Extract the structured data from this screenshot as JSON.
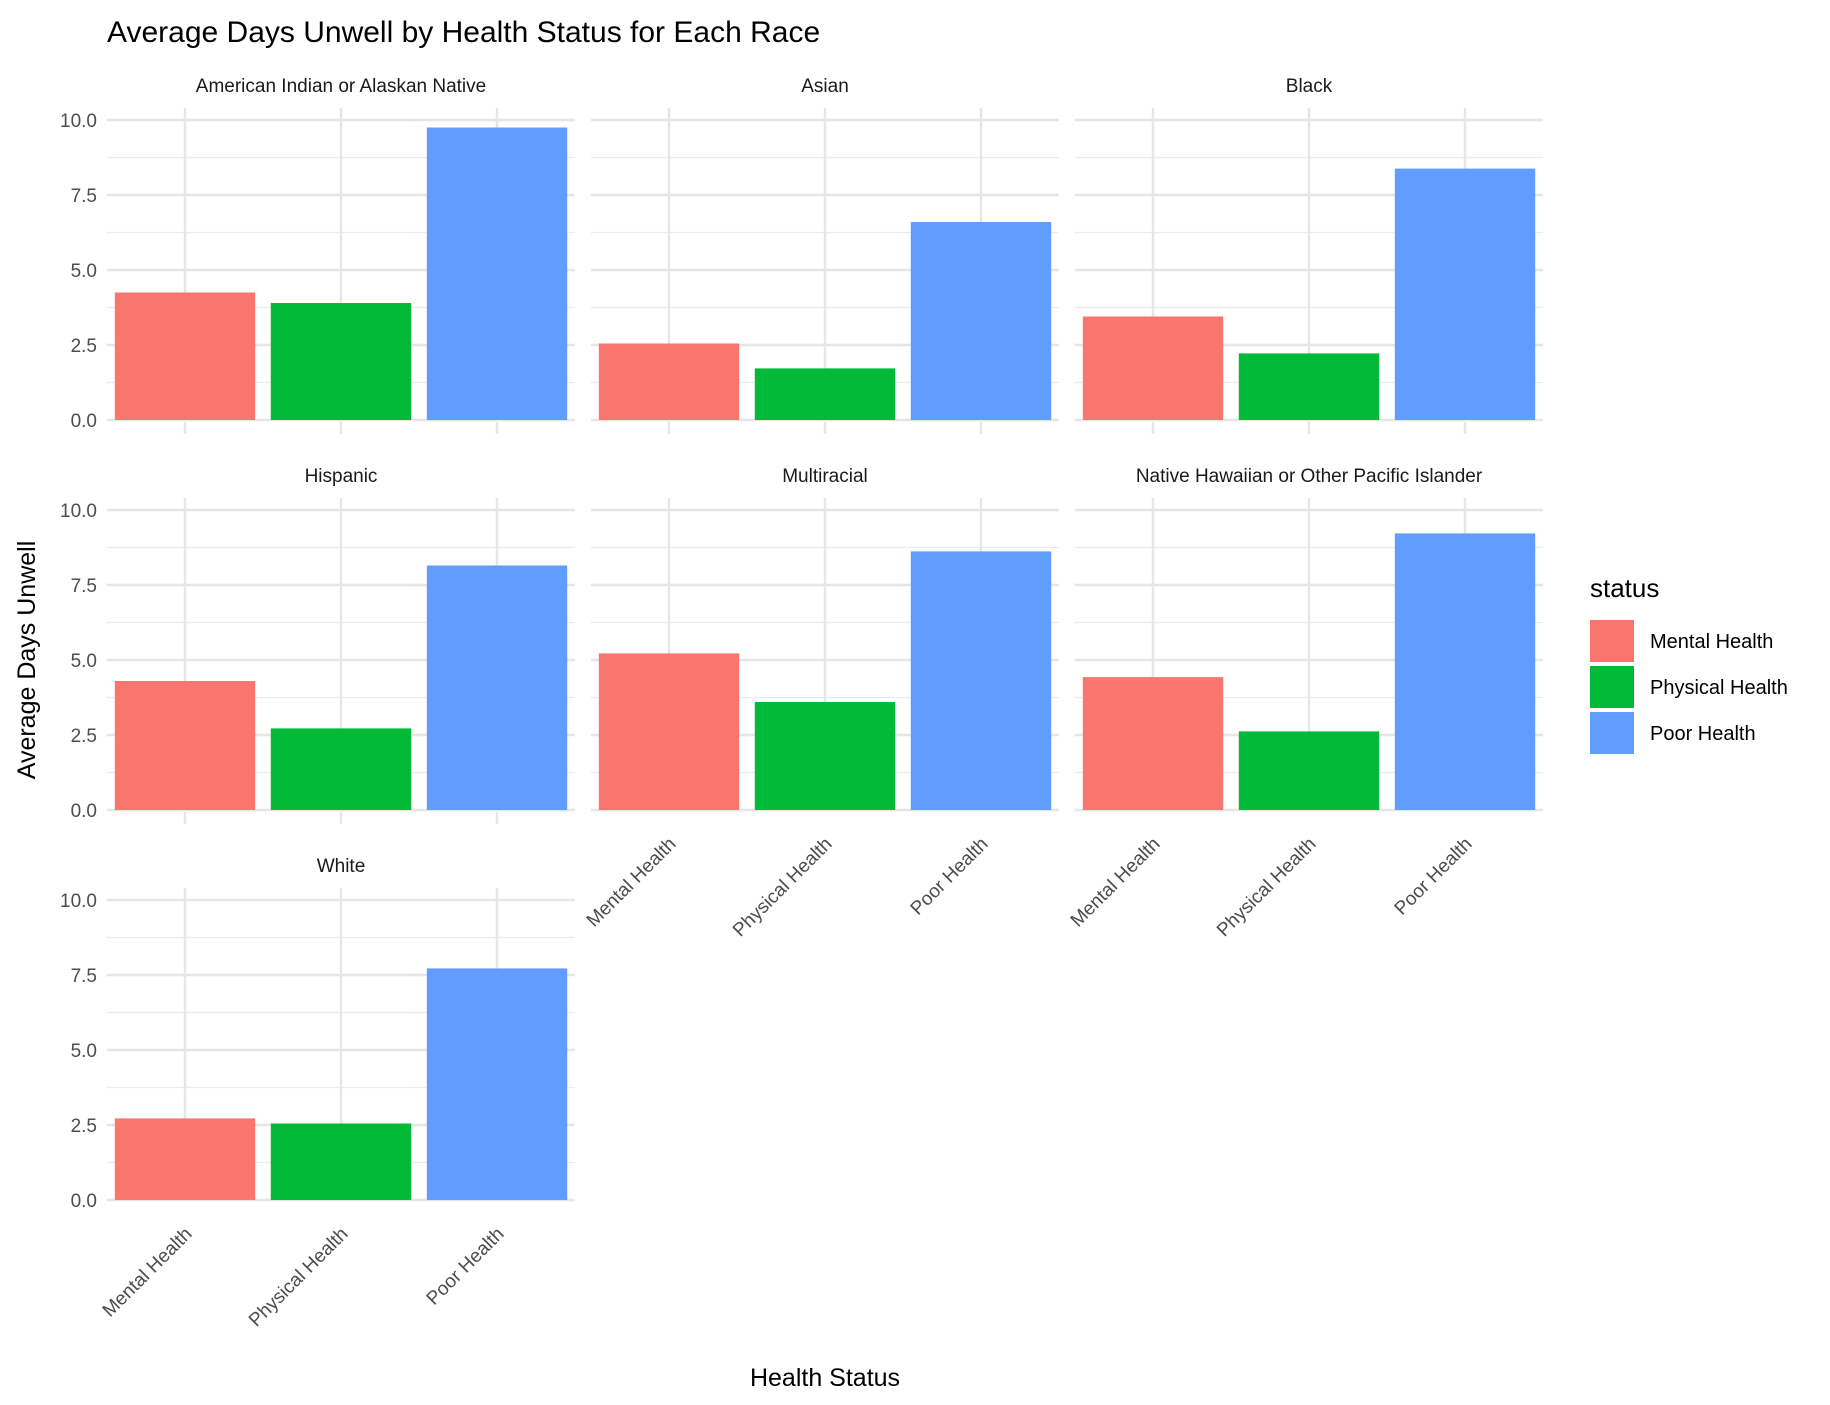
{
  "chart_data": {
    "type": "bar",
    "title": "Average Days Unwell by Health Status for Each Race",
    "xlabel": "Health Status",
    "ylabel": "Average Days Unwell",
    "ylim": [
      0,
      10.4
    ],
    "yticks": [
      "0.0",
      "2.5",
      "5.0",
      "7.5",
      "10.0"
    ],
    "ytick_values": [
      0,
      2.5,
      5,
      7.5,
      10
    ],
    "categories": [
      "Mental Health",
      "Physical Health",
      "Poor Health"
    ],
    "grid": true,
    "legend": {
      "title": "status",
      "position": "right",
      "entries": [
        "Mental Health",
        "Physical Health",
        "Poor Health"
      ]
    },
    "colors": {
      "Mental Health": "#F8766D",
      "Physical Health": "#00BA38",
      "Poor Health": "#619CFF"
    },
    "facets": [
      {
        "name": "American Indian or Alaskan Native",
        "values": [
          4.25,
          3.9,
          9.75
        ]
      },
      {
        "name": "Asian",
        "values": [
          2.55,
          1.72,
          6.6
        ]
      },
      {
        "name": "Black",
        "values": [
          3.45,
          2.22,
          8.38
        ]
      },
      {
        "name": "Hispanic",
        "values": [
          4.3,
          2.72,
          8.15
        ]
      },
      {
        "name": "Multiracial",
        "values": [
          5.22,
          3.6,
          8.62
        ]
      },
      {
        "name": "Native Hawaiian or Other Pacific Islander",
        "values": [
          4.43,
          2.62,
          9.22
        ]
      },
      {
        "name": "White",
        "values": [
          2.72,
          2.55,
          7.72
        ]
      }
    ]
  }
}
